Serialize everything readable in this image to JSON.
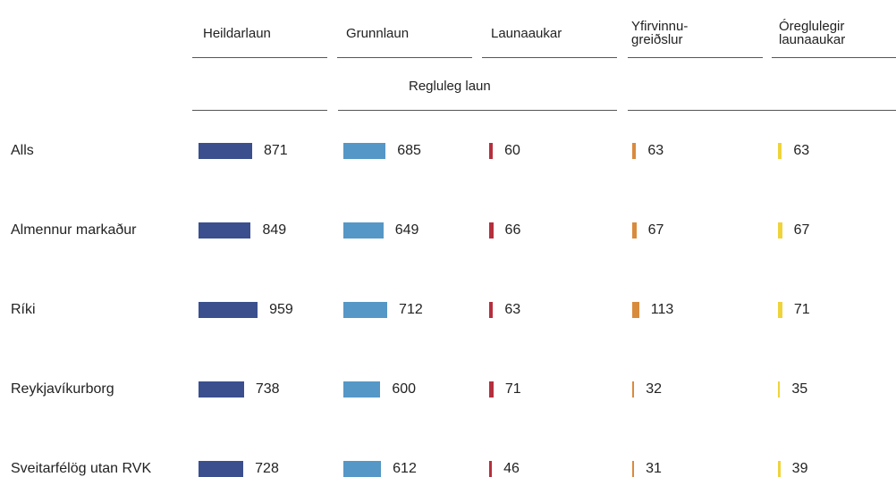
{
  "chart_data": {
    "type": "bar",
    "group_label": "Regluleg laun",
    "categories": [
      "Alls",
      "Almennur markaður",
      "Ríki",
      "Reykjavíkurborg",
      "Sveitarfélög utan RVK"
    ],
    "series": [
      {
        "name": "Heildarlaun",
        "color": "#3b4f8e",
        "values": [
          871,
          849,
          959,
          738,
          728
        ]
      },
      {
        "name": "Grunnlaun",
        "color": "#5597c6",
        "values": [
          685,
          649,
          712,
          600,
          612
        ]
      },
      {
        "name": "Launaaukar",
        "color": "#b52f3d",
        "values": [
          60,
          66,
          63,
          71,
          46
        ]
      },
      {
        "name": "Yfirvinnu-\ngreiðslur",
        "color": "#d98b3c",
        "values": [
          63,
          67,
          113,
          32,
          31
        ]
      },
      {
        "name": "Óreglulegir\nlaunaaukar",
        "color": "#efd33b",
        "values": [
          63,
          67,
          71,
          35,
          39
        ]
      }
    ]
  }
}
